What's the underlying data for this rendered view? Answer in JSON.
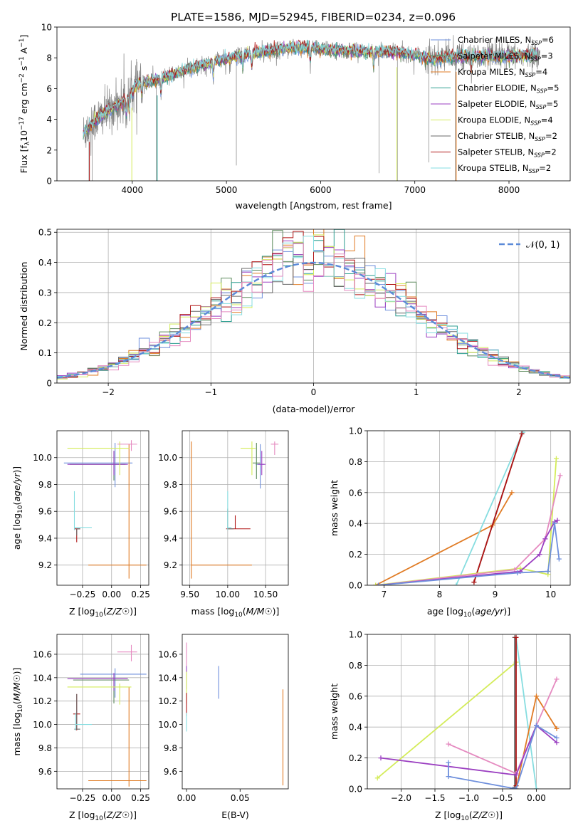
{
  "figure_title": "PLATE=1586, MJD=52945, FIBERID=0234, z=0.096",
  "colors": {
    "chabrier_miles": "#6e8fdc",
    "salpeter_miles": "#5c8a5c",
    "kroupa_miles": "#e07b24",
    "chabrier_elodie": "#2a9d8f",
    "salpeter_elodie": "#9b3fc1",
    "kroupa_elodie": "#d4ec5a",
    "chabrier_stelib": "#6a6a6a",
    "salpeter_stelib": "#b01515",
    "kroupa_stelib": "#86dde0",
    "data_spectrum": "#808080",
    "pink": "#e58ac0",
    "normal_curve": "#5b8ad8"
  },
  "chart_data": [
    {
      "id": "spectrum",
      "type": "line",
      "xlabel": "wavelength [Angstrom, rest frame]",
      "ylabel": "Flux [f_λ 10^-17 erg cm^-2 s^-1 A^-1]",
      "xlim": [
        3200,
        8650
      ],
      "ylim": [
        0,
        10
      ],
      "xticks": [
        4000,
        5000,
        6000,
        7000,
        8000
      ],
      "yticks": [
        0,
        2,
        4,
        6,
        8,
        10
      ],
      "legend_position": "upper-right",
      "legend": [
        {
          "label": "Chabrier MILES, N_SSP=6",
          "color": "#6e8fdc"
        },
        {
          "label": "Salpeter MILES, N_SSP=3",
          "color": "#5c8a5c"
        },
        {
          "label": "Kroupa MILES, N_SSP=4",
          "color": "#e07b24"
        },
        {
          "label": "Chabrier ELODIE, N_SSP=5",
          "color": "#2a9d8f"
        },
        {
          "label": "Salpeter ELODIE, N_SSP=5",
          "color": "#9b3fc1"
        },
        {
          "label": "Kroupa ELODIE, N_SSP=4",
          "color": "#d4ec5a"
        },
        {
          "label": "Chabrier STELIB, N_SSP=2",
          "color": "#6a6a6a"
        },
        {
          "label": "Salpeter STELIB, N_SSP=2",
          "color": "#b01515"
        },
        {
          "label": "Kroupa STELIB, N_SSP=2",
          "color": "#86dde0"
        }
      ],
      "continuum": [
        [
          3480,
          3.1
        ],
        [
          3600,
          3.9
        ],
        [
          3800,
          4.8
        ],
        [
          3950,
          5.3
        ],
        [
          4050,
          6.3
        ],
        [
          4300,
          6.6
        ],
        [
          4600,
          7.3
        ],
        [
          4900,
          7.8
        ],
        [
          5200,
          8.2
        ],
        [
          5500,
          8.5
        ],
        [
          5800,
          8.7
        ],
        [
          6100,
          8.5
        ],
        [
          6500,
          8.4
        ],
        [
          6800,
          8.4
        ],
        [
          7000,
          8.2
        ],
        [
          7200,
          7.9
        ],
        [
          7400,
          8.1
        ],
        [
          7700,
          8.1
        ],
        [
          8000,
          8.1
        ],
        [
          8300,
          8.2
        ]
      ]
    },
    {
      "id": "residuals",
      "type": "histogram",
      "xlabel": "(data-model)/error",
      "ylabel": "Normed distribution",
      "xlim": [
        -2.5,
        2.5
      ],
      "ylim": [
        0,
        0.51
      ],
      "xticks": [
        -2,
        -1,
        0,
        1,
        2
      ],
      "yticks": [
        0.0,
        0.1,
        0.2,
        0.3,
        0.4,
        0.5
      ],
      "legend_position": "upper-right",
      "legend": [
        {
          "label": "𝒩(0, 1)",
          "color": "#5b8ad8"
        }
      ],
      "bin_width": 0.1
    },
    {
      "id": "age_vs_Z",
      "type": "errorbar",
      "xlabel": "Z [log10(Z/Z☉)]",
      "ylabel": "age  [log10(age/yr)]",
      "xlim": [
        -0.47,
        0.32
      ],
      "ylim": [
        9.05,
        10.2
      ],
      "xticks": [
        -0.25,
        0.0,
        0.25
      ],
      "yticks": [
        9.2,
        9.4,
        9.6,
        9.8,
        10.0
      ],
      "points": [
        {
          "color": "#6e8fdc",
          "x": 0.03,
          "y": 9.96,
          "xerr": [
            0.44,
            0.15
          ],
          "yerr": [
            0.18,
            0.15
          ]
        },
        {
          "color": "#5c8a5c",
          "x": 0.02,
          "y": 9.95,
          "xerr": [
            0.38,
            0.1
          ],
          "yerr": [
            0.12,
            0.1
          ]
        },
        {
          "color": "#e07b24",
          "x": 0.15,
          "y": 9.2,
          "xerr": [
            0.35,
            0.15
          ],
          "yerr": [
            0.1,
            0.9
          ]
        },
        {
          "color": "#9b3fc1",
          "x": 0.02,
          "y": 9.95,
          "xerr": [
            0.4,
            0.12
          ],
          "yerr": [
            0.08,
            0.1
          ]
        },
        {
          "color": "#d4ec5a",
          "x": 0.07,
          "y": 10.07,
          "xerr": [
            0.45,
            0.08
          ],
          "yerr": [
            0.2,
            0.05
          ]
        },
        {
          "color": "#e58ac0",
          "x": 0.17,
          "y": 10.1,
          "xerr": [
            0.12,
            0.05
          ],
          "yerr": [
            0.05,
            0.03
          ]
        },
        {
          "color": "#b01515",
          "x": -0.3,
          "y": 9.47,
          "xerr": [
            0.02,
            0.03
          ],
          "yerr": [
            0.1,
            0.0
          ]
        },
        {
          "color": "#6a6a6a",
          "x": -0.3,
          "y": 9.47,
          "xerr": [
            0.0,
            0.03
          ],
          "yerr": [
            0.05,
            0.0
          ]
        },
        {
          "color": "#86dde0",
          "x": -0.32,
          "y": 9.48,
          "xerr": [
            0.0,
            0.15
          ],
          "yerr": [
            0.02,
            0.27
          ]
        }
      ]
    },
    {
      "id": "age_vs_mass",
      "type": "errorbar",
      "xlabel": "mass [log10(M/M☉)]",
      "ylabel": "",
      "xlim": [
        9.4,
        10.8
      ],
      "ylim": [
        9.05,
        10.2
      ],
      "xticks": [
        9.5,
        10.0,
        10.5
      ],
      "yticks": [
        9.2,
        9.4,
        9.6,
        9.8,
        10.0
      ],
      "points": [
        {
          "color": "#6e8fdc",
          "x": 10.43,
          "y": 9.95,
          "xerr": [
            0.06,
            0.05
          ],
          "yerr": [
            0.18,
            0.15
          ]
        },
        {
          "color": "#5c8a5c",
          "x": 10.38,
          "y": 9.96,
          "xerr": [
            0.05,
            0.05
          ],
          "yerr": [
            0.12,
            0.15
          ]
        },
        {
          "color": "#e07b24",
          "x": 9.52,
          "y": 9.2,
          "xerr": [
            0.0,
            0.8
          ],
          "yerr": [
            0.1,
            0.92
          ]
        },
        {
          "color": "#9b3fc1",
          "x": 10.45,
          "y": 9.95,
          "xerr": [
            0.05,
            0.05
          ],
          "yerr": [
            0.08,
            0.1
          ]
        },
        {
          "color": "#d4ec5a",
          "x": 10.32,
          "y": 10.07,
          "xerr": [
            0.15,
            0.05
          ],
          "yerr": [
            0.2,
            0.05
          ]
        },
        {
          "color": "#e58ac0",
          "x": 10.62,
          "y": 10.1,
          "xerr": [
            0.05,
            0.05
          ],
          "yerr": [
            0.08,
            0.02
          ]
        },
        {
          "color": "#b01515",
          "x": 10.1,
          "y": 9.47,
          "xerr": [
            0.12,
            0.2
          ],
          "yerr": [
            0.0,
            0.1
          ]
        },
        {
          "color": "#6a6a6a",
          "x": 10.0,
          "y": 9.47,
          "xerr": [
            0.0,
            0.08
          ],
          "yerr": [
            0.0,
            0.15
          ]
        },
        {
          "color": "#86dde0",
          "x": 10.0,
          "y": 9.48,
          "xerr": [
            0.0,
            0.05
          ],
          "yerr": [
            0.02,
            0.27
          ]
        }
      ]
    },
    {
      "id": "massweight_vs_age",
      "type": "line",
      "xlabel": "age  [log10(age/yr)]",
      "ylabel": "mass weight",
      "xlim": [
        6.7,
        10.35
      ],
      "ylim": [
        0,
        1
      ],
      "xticks": [
        7,
        8,
        9,
        10
      ],
      "yticks": [
        0.0,
        0.2,
        0.4,
        0.6,
        0.8,
        1.0
      ],
      "series": [
        {
          "color": "#e07b24",
          "points": [
            [
              6.85,
              0.0
            ],
            [
              8.96,
              0.39
            ],
            [
              9.3,
              0.6
            ]
          ]
        },
        {
          "color": "#86dde0",
          "points": [
            [
              8.3,
              0.0
            ],
            [
              9.5,
              0.99
            ]
          ]
        },
        {
          "color": "#6a6a6a",
          "points": [
            [
              8.62,
              0.02
            ],
            [
              9.48,
              0.98
            ]
          ]
        },
        {
          "color": "#b01515",
          "points": [
            [
              8.62,
              0.02
            ],
            [
              9.48,
              0.98
            ]
          ]
        },
        {
          "color": "#d4ec5a",
          "points": [
            [
              6.85,
              0.0
            ],
            [
              9.45,
              0.11
            ],
            [
              9.95,
              0.07
            ],
            [
              10.1,
              0.82
            ]
          ]
        },
        {
          "color": "#e58ac0",
          "points": [
            [
              6.9,
              0.0
            ],
            [
              9.35,
              0.1
            ],
            [
              9.9,
              0.3
            ],
            [
              10.17,
              0.71
            ]
          ]
        },
        {
          "color": "#9b3fc1",
          "points": [
            [
              6.9,
              0.0
            ],
            [
              9.45,
              0.09
            ],
            [
              9.8,
              0.2
            ],
            [
              9.9,
              0.3
            ],
            [
              10.07,
              0.41
            ],
            [
              10.12,
              0.42
            ]
          ]
        },
        {
          "color": "#6e8fdc",
          "points": [
            [
              6.9,
              0.0
            ],
            [
              9.4,
              0.08
            ],
            [
              9.95,
              0.09
            ],
            [
              10.07,
              0.4
            ],
            [
              10.15,
              0.17
            ]
          ]
        }
      ]
    },
    {
      "id": "mass_vs_Z",
      "type": "errorbar",
      "xlabel": "Z [log10(Z/Z☉)]",
      "ylabel": "mass [log10(M/M☉)]",
      "xlim": [
        -0.47,
        0.32
      ],
      "ylim": [
        9.45,
        10.77
      ],
      "xticks": [
        -0.25,
        0.0,
        0.25
      ],
      "yticks": [
        9.6,
        9.8,
        10.0,
        10.2,
        10.4,
        10.6
      ],
      "points": [
        {
          "color": "#6e8fdc",
          "x": 0.03,
          "y": 10.43,
          "xerr": [
            0.3,
            0.27
          ],
          "yerr": [
            0.2,
            0.05
          ]
        },
        {
          "color": "#5c8a5c",
          "x": 0.02,
          "y": 10.38,
          "xerr": [
            0.35,
            0.13
          ],
          "yerr": [
            0.2,
            0.05
          ]
        },
        {
          "color": "#e07b24",
          "x": 0.15,
          "y": 9.52,
          "xerr": [
            0.35,
            0.15
          ],
          "yerr": [
            0.05,
            0.8
          ]
        },
        {
          "color": "#9b3fc1",
          "x": 0.02,
          "y": 10.39,
          "xerr": [
            0.4,
            0.12
          ],
          "yerr": [
            0.1,
            0.05
          ]
        },
        {
          "color": "#d4ec5a",
          "x": 0.07,
          "y": 10.32,
          "xerr": [
            0.45,
            0.1
          ],
          "yerr": [
            0.15,
            0.03
          ]
        },
        {
          "color": "#e58ac0",
          "x": 0.17,
          "y": 10.62,
          "xerr": [
            0.12,
            0.05
          ],
          "yerr": [
            0.08,
            0.06
          ]
        },
        {
          "color": "#b01515",
          "x": -0.3,
          "y": 10.09,
          "xerr": [
            0.03,
            0.03
          ],
          "yerr": [
            0.14,
            0.17
          ]
        },
        {
          "color": "#6a6a6a",
          "x": -0.3,
          "y": 9.96,
          "xerr": [
            0.02,
            0.03
          ],
          "yerr": [
            0.0,
            0.3
          ]
        },
        {
          "color": "#86dde0",
          "x": -0.31,
          "y": 10.0,
          "xerr": [
            0.0,
            0.14
          ],
          "yerr": [
            0.05,
            0.1
          ]
        }
      ]
    },
    {
      "id": "mass_vs_EBV",
      "type": "errorbar",
      "xlabel": "E(B-V)",
      "ylabel": "",
      "xlim": [
        -0.004,
        0.095
      ],
      "ylim": [
        9.45,
        10.77
      ],
      "xticks": [
        0.0,
        0.05
      ],
      "yticks": [
        9.6,
        9.8,
        10.0,
        10.2,
        10.4,
        10.6
      ],
      "points": [
        {
          "color": "#6e8fdc",
          "x": 0.03,
          "y": 10.36,
          "xerr": [
            0,
            0
          ],
          "yerr": [
            0.14,
            0.14
          ]
        },
        {
          "color": "#e07b24",
          "x": 0.09,
          "y": 9.9,
          "xerr": [
            0,
            0
          ],
          "yerr": [
            0.42,
            0.4
          ]
        },
        {
          "color": "#e58ac0",
          "x": 0.0,
          "y": 10.6,
          "xerr": [
            0,
            0
          ],
          "yerr": [
            0.1,
            0.1
          ]
        },
        {
          "color": "#9b3fc1",
          "x": 0.0,
          "y": 10.4,
          "xerr": [
            0,
            0
          ],
          "yerr": [
            0.1,
            0.1
          ]
        },
        {
          "color": "#d4ec5a",
          "x": 0.0,
          "y": 10.3,
          "xerr": [
            0,
            0
          ],
          "yerr": [
            0.12,
            0.15
          ]
        },
        {
          "color": "#b01515",
          "x": 0.0,
          "y": 10.17,
          "xerr": [
            0,
            0
          ],
          "yerr": [
            0.1,
            0.1
          ]
        },
        {
          "color": "#86dde0",
          "x": 0.0,
          "y": 10.0,
          "xerr": [
            0,
            0
          ],
          "yerr": [
            0.06,
            0.1
          ]
        }
      ]
    },
    {
      "id": "massweight_vs_Z",
      "type": "line",
      "xlabel": "Z [log10(Z/Z☉)]",
      "ylabel": "mass weight",
      "xlim": [
        -2.5,
        0.5
      ],
      "ylim": [
        0,
        1
      ],
      "xticks": [
        -2.0,
        -1.5,
        -1.0,
        -0.5,
        0.0
      ],
      "yticks": [
        0.0,
        0.2,
        0.4,
        0.6,
        0.8,
        1.0
      ],
      "series": [
        {
          "color": "#d4ec5a",
          "points": [
            [
              -2.35,
              0.07
            ],
            [
              -0.3,
              0.82
            ]
          ]
        },
        {
          "color": "#86dde0",
          "points": [
            [
              -0.3,
              0.98
            ],
            [
              0.0,
              0.0
            ]
          ]
        },
        {
          "color": "#6a6a6a",
          "points": [
            [
              -0.32,
              0.98
            ],
            [
              -0.32,
              0.01
            ]
          ]
        },
        {
          "color": "#b01515",
          "points": [
            [
              -0.3,
              0.98
            ],
            [
              -0.3,
              0.02
            ]
          ]
        },
        {
          "color": "#e07b24",
          "points": [
            [
              -0.3,
              0.0
            ],
            [
              0.0,
              0.6
            ],
            [
              0.3,
              0.39
            ]
          ]
        },
        {
          "color": "#e58ac0",
          "points": [
            [
              -1.3,
              0.29
            ],
            [
              -0.3,
              0.1
            ],
            [
              0.0,
              0.41
            ],
            [
              0.3,
              0.71
            ]
          ]
        },
        {
          "color": "#9b3fc1",
          "points": [
            [
              -2.3,
              0.2
            ],
            [
              -0.3,
              0.09
            ],
            [
              0.0,
              0.41
            ],
            [
              0.3,
              0.3
            ]
          ]
        },
        {
          "color": "#6e8fdc",
          "points": [
            [
              -1.3,
              0.17
            ],
            [
              -1.3,
              0.08
            ],
            [
              -0.3,
              0.0
            ],
            [
              0.0,
              0.41
            ],
            [
              0.3,
              0.33
            ]
          ]
        }
      ]
    }
  ]
}
